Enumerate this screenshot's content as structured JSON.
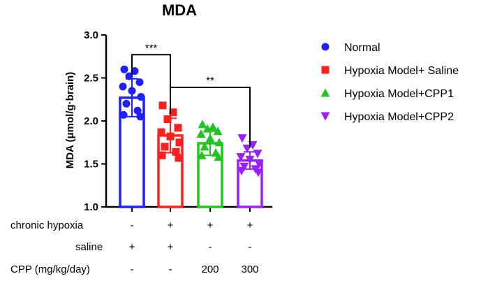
{
  "chart_data": {
    "type": "bar",
    "title": "MDA",
    "ylabel": "MDA (μmol/g·brain)",
    "xlabel": "",
    "ylim": [
      1.0,
      3.0
    ],
    "yticks": [
      "1.0",
      "1.5",
      "2.0",
      "2.5",
      "3.0"
    ],
    "categories": [
      "Normal",
      "Hypoxia Model+ Saline",
      "Hypoxia Model+CPP1",
      "Hypoxia Model+CPP2"
    ],
    "series": [
      {
        "name": "Normal",
        "value": 2.27,
        "sd": 0.22,
        "color": "#1f1fff",
        "marker": "circle",
        "points": [
          2.6,
          2.58,
          2.52,
          2.45,
          2.4,
          2.35,
          2.28,
          2.2,
          2.12,
          2.07,
          2.05
        ]
      },
      {
        "name": "Hypoxia Model+ Saline",
        "value": 1.83,
        "sd": 0.2,
        "color": "#ff1f1f",
        "marker": "square",
        "points": [
          2.18,
          2.1,
          2.02,
          1.92,
          1.87,
          1.82,
          1.75,
          1.7,
          1.64,
          1.6,
          1.57
        ]
      },
      {
        "name": "Hypoxia Model+CPP1",
        "value": 1.74,
        "sd": 0.14,
        "color": "#22c422",
        "marker": "triangle-up",
        "points": [
          1.96,
          1.93,
          1.91,
          1.88,
          1.85,
          1.8,
          1.75,
          1.7,
          1.63,
          1.6,
          1.58
        ]
      },
      {
        "name": "Hypoxia Model+CPP2",
        "value": 1.54,
        "sd": 0.1,
        "color": "#9b1fff",
        "marker": "triangle-down",
        "points": [
          1.8,
          1.72,
          1.68,
          1.62,
          1.58,
          1.55,
          1.5,
          1.47,
          1.44,
          1.42,
          1.4
        ]
      }
    ],
    "significance": [
      {
        "from": 0,
        "to": 1,
        "label": "***",
        "y": 2.77
      },
      {
        "from": 1,
        "to": 3,
        "label": "**",
        "y": 2.39
      }
    ],
    "conditions": [
      {
        "label": "chronic hypoxia",
        "values": [
          "-",
          "+",
          "+",
          "+"
        ]
      },
      {
        "label": "saline",
        "values": [
          "+",
          "+",
          "-",
          "-"
        ]
      },
      {
        "label": "CPP (mg/kg/day)",
        "values": [
          "-",
          "-",
          "200",
          "300"
        ]
      }
    ]
  }
}
